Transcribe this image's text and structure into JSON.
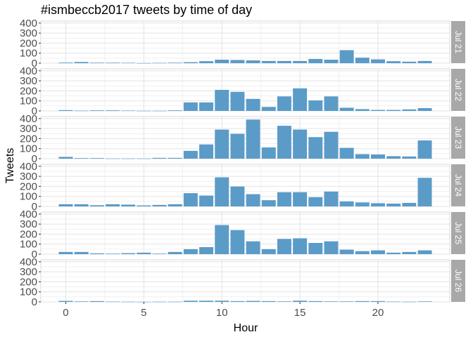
{
  "chart_data": {
    "type": "bar",
    "title": "#ismbeccb2017 tweets by time of day",
    "xlabel": "Hour",
    "ylabel": "Tweets",
    "x": [
      0,
      1,
      2,
      3,
      4,
      5,
      6,
      7,
      8,
      9,
      10,
      11,
      12,
      13,
      14,
      15,
      16,
      17,
      18,
      19,
      20,
      21,
      22,
      23
    ],
    "xticks": [
      0,
      5,
      10,
      15,
      20
    ],
    "yticks": [
      0,
      100,
      200,
      300,
      400
    ],
    "xlim": [
      -1.6,
      24.6
    ],
    "ylim": [
      0,
      420
    ],
    "grid": true,
    "bar_color": "#5b9bc8",
    "panel_color": "#ffffff",
    "grid_color": "#e3e3e3",
    "strip_color": "#a8a8a8",
    "facet_label_position": "right",
    "series": [
      {
        "name": "Jul 21",
        "values": [
          6,
          12,
          5,
          5,
          4,
          1,
          3,
          5,
          10,
          20,
          35,
          32,
          28,
          22,
          22,
          22,
          42,
          35,
          130,
          55,
          38,
          20,
          15,
          22
        ]
      },
      {
        "name": "Jul 22",
        "values": [
          8,
          3,
          6,
          6,
          4,
          2,
          2,
          6,
          85,
          85,
          210,
          190,
          120,
          40,
          145,
          225,
          105,
          145,
          32,
          18,
          10,
          10,
          15,
          28
        ]
      },
      {
        "name": "Jul 23",
        "values": [
          18,
          6,
          6,
          2,
          2,
          2,
          8,
          8,
          78,
          142,
          290,
          248,
          390,
          112,
          328,
          290,
          215,
          268,
          108,
          45,
          42,
          25,
          22,
          182
        ]
      },
      {
        "name": "Jul 24",
        "values": [
          22,
          22,
          12,
          22,
          18,
          10,
          15,
          22,
          132,
          108,
          290,
          198,
          122,
          62,
          142,
          142,
          92,
          148,
          50,
          40,
          32,
          28,
          35,
          285
        ]
      },
      {
        "name": "Jul 25",
        "values": [
          22,
          22,
          8,
          5,
          10,
          15,
          5,
          22,
          50,
          70,
          290,
          240,
          128,
          50,
          152,
          158,
          112,
          128,
          45,
          30,
          38,
          15,
          22,
          38
        ]
      },
      {
        "name": "Jul 26",
        "values": [
          10,
          5,
          8,
          3,
          2,
          1,
          2,
          2,
          12,
          12,
          12,
          8,
          10,
          8,
          5,
          12,
          8,
          5,
          5,
          8,
          8,
          3,
          2,
          5
        ]
      }
    ]
  }
}
